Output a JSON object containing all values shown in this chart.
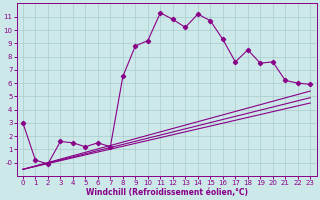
{
  "xlabel": "Windchill (Refroidissement éolien,°C)",
  "background_color": "#cde8e8",
  "grid_color": "#aacccc",
  "line_color": "#880088",
  "x_main": [
    0,
    1,
    2,
    3,
    4,
    5,
    6,
    7,
    8,
    9,
    10,
    11,
    12,
    13,
    14,
    15,
    16,
    17,
    18,
    19,
    20,
    21,
    22,
    23
  ],
  "y_main": [
    3.0,
    0.2,
    -0.1,
    1.6,
    1.5,
    1.2,
    1.5,
    1.2,
    6.5,
    8.8,
    9.2,
    11.3,
    10.8,
    10.2,
    11.2,
    10.7,
    9.3,
    7.6,
    8.5,
    7.5,
    7.6,
    6.2,
    6.0,
    5.9
  ],
  "ref_lines": [
    {
      "x": [
        0,
        23
      ],
      "y": [
        -0.5,
        5.4
      ]
    },
    {
      "x": [
        0,
        23
      ],
      "y": [
        -0.5,
        4.9
      ]
    },
    {
      "x": [
        0,
        23
      ],
      "y": [
        -0.5,
        4.5
      ]
    }
  ],
  "ylim": [
    -1.0,
    12.0
  ],
  "xlim": [
    -0.5,
    23.5
  ],
  "yticks": [
    0,
    1,
    2,
    3,
    4,
    5,
    6,
    7,
    8,
    9,
    10,
    11
  ],
  "xticks": [
    0,
    1,
    2,
    3,
    4,
    5,
    6,
    7,
    8,
    9,
    10,
    11,
    12,
    13,
    14,
    15,
    16,
    17,
    18,
    19,
    20,
    21,
    22,
    23
  ],
  "tick_fontsize": 5.0,
  "xlabel_fontsize": 5.5,
  "spine_color": "#880088",
  "tick_color": "#880088"
}
